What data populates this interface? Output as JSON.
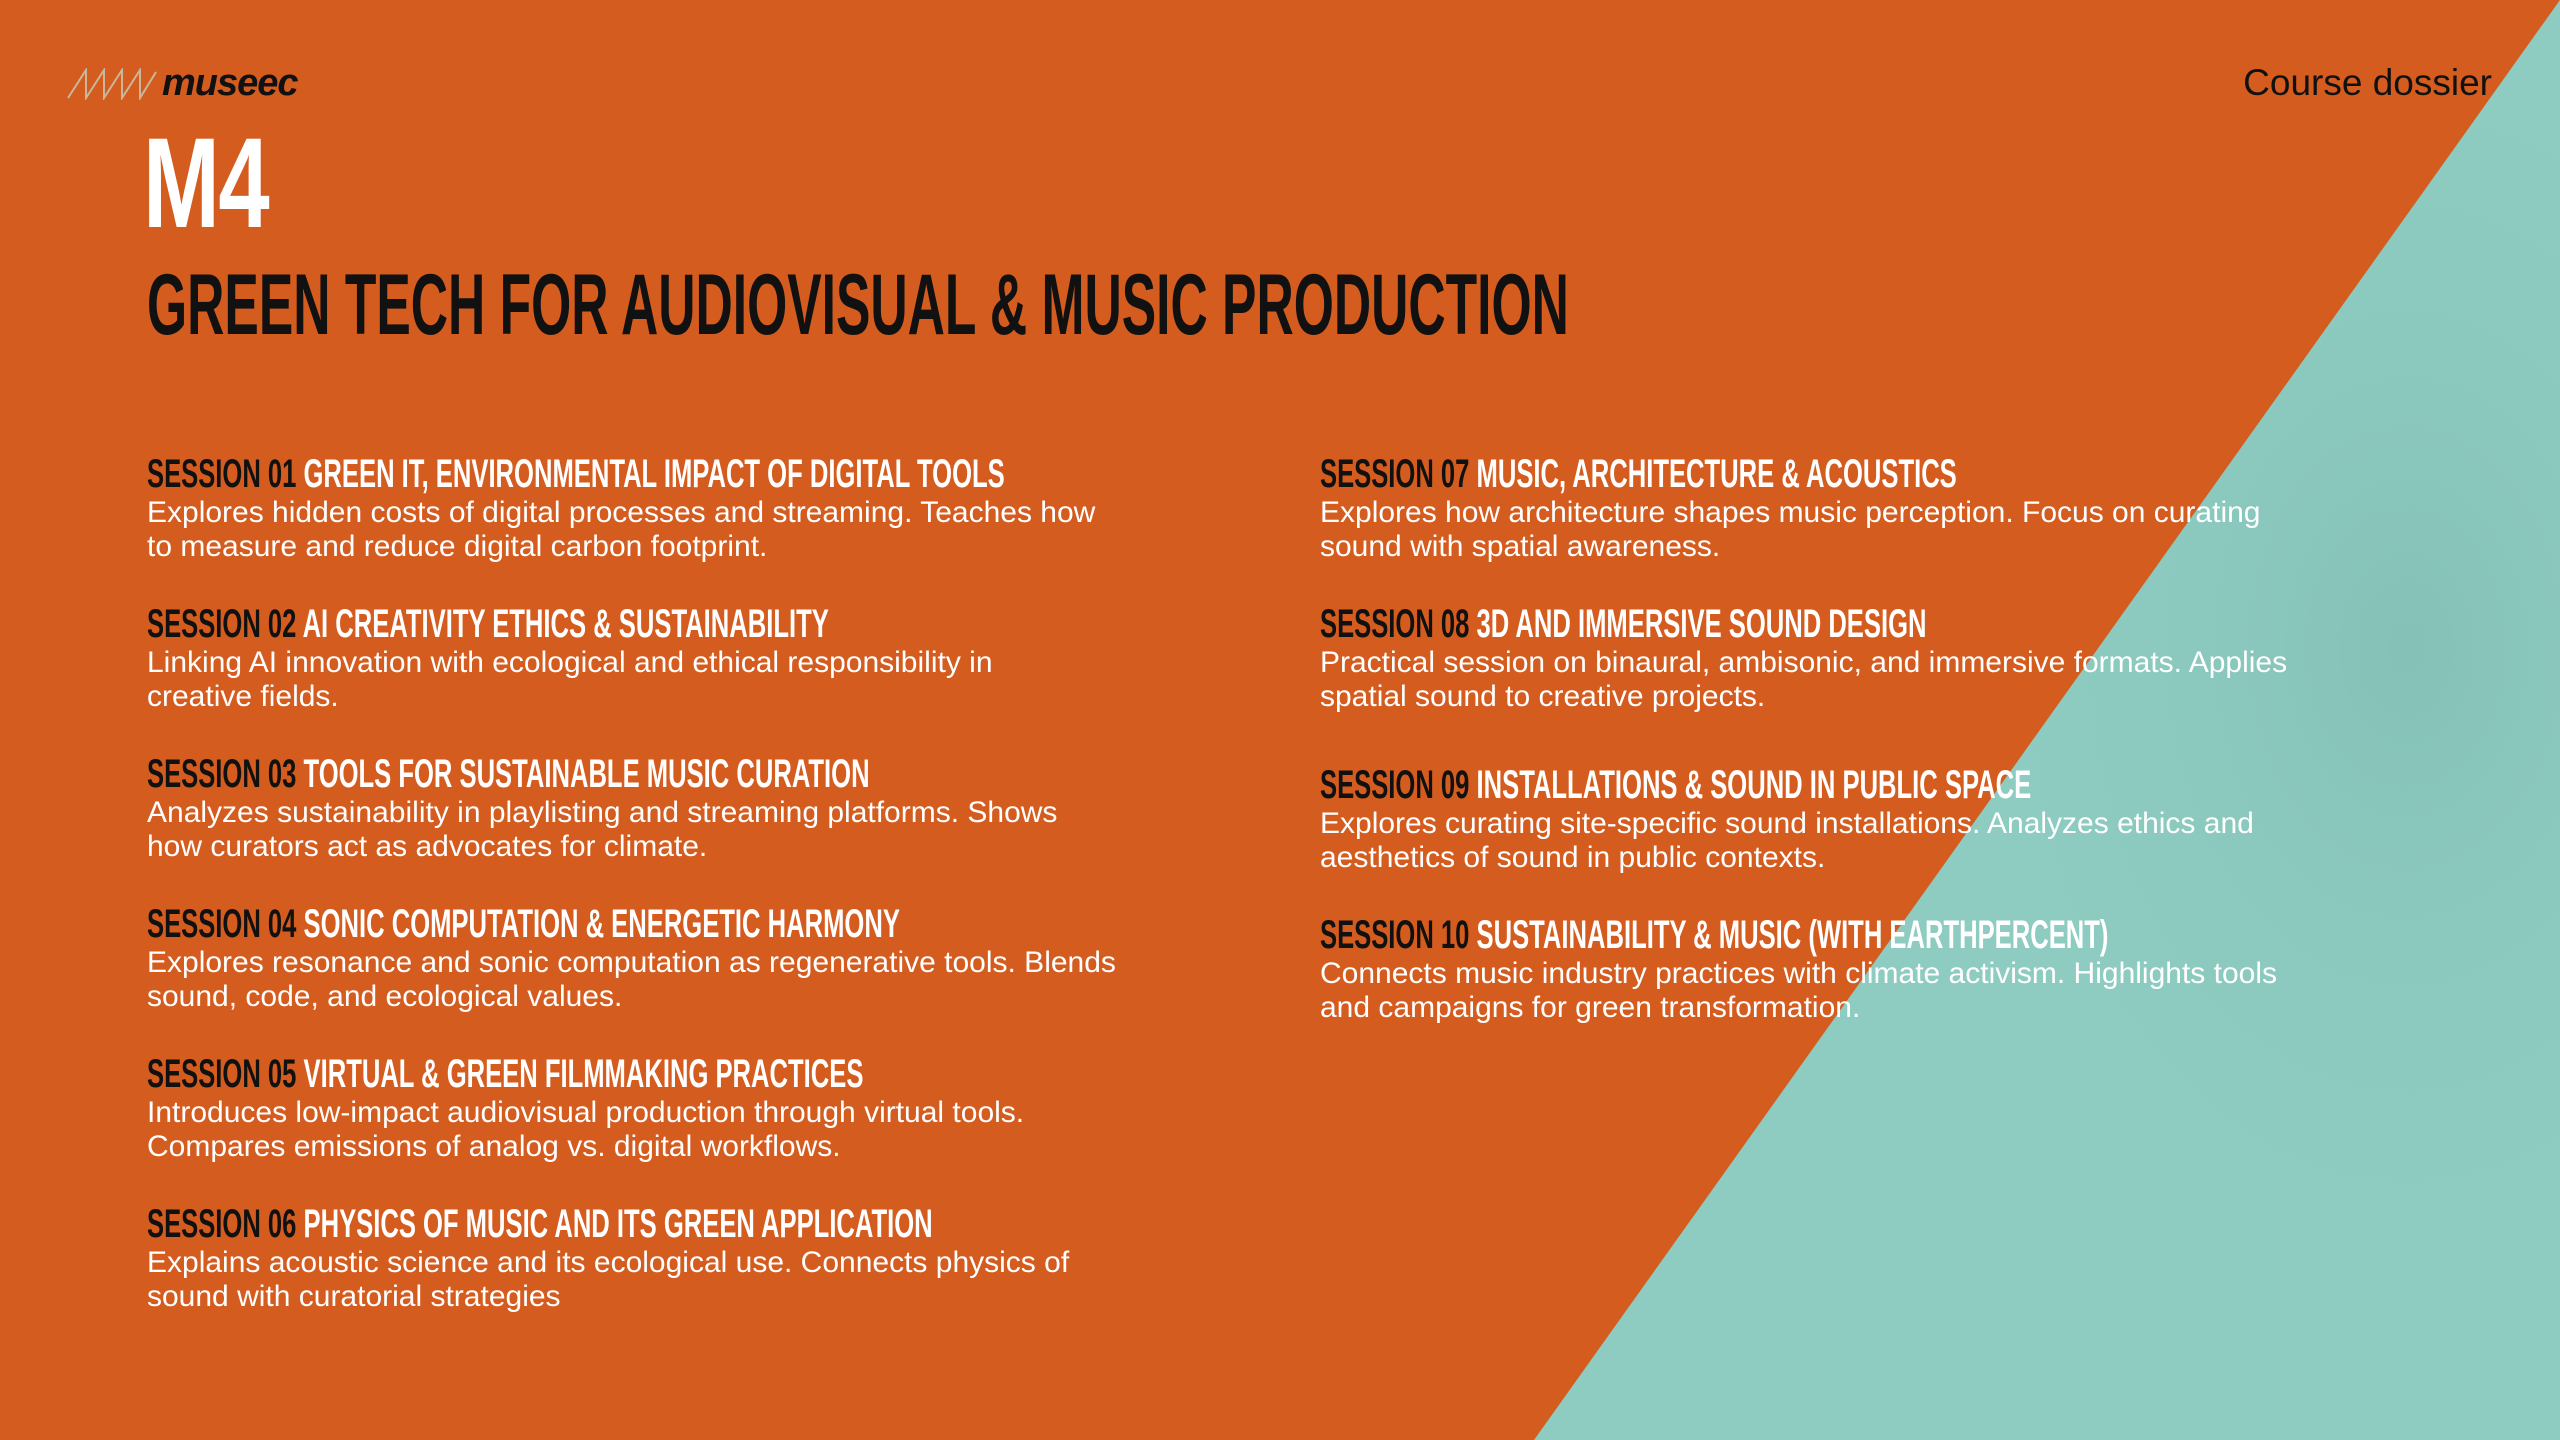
{
  "colors": {
    "background": "#D55C1F",
    "accent_panel": "#8ECCC2",
    "heading_dark": "#111111",
    "text_light": "#FFFFFF"
  },
  "header": {
    "logo_text": "museec",
    "logo_icon": "zigzag-wave-icon",
    "right_label": "Course dossier"
  },
  "module": {
    "code": "M4",
    "title": "GREEN TECH FOR AUDIOVISUAL & MUSIC PRODUCTION"
  },
  "sessions": [
    {
      "number": "SESSION 01",
      "title": "GREEN IT, ENVIRONMENTAL IMPACT OF DIGITAL TOOLS",
      "lines": [
        "Explores hidden costs of digital processes and streaming. Teaches how",
        "to measure and reduce digital carbon footprint."
      ]
    },
    {
      "number": "SESSION 02",
      "title": "AI CREATIVITY ETHICS & SUSTAINABILITY",
      "lines": [
        "Linking AI innovation with ecological and ethical responsibility in",
        "creative fields."
      ]
    },
    {
      "number": "SESSION 03",
      "title": "TOOLS FOR SUSTAINABLE MUSIC CURATION",
      "lines": [
        "Analyzes sustainability in playlisting and streaming platforms. Shows",
        "how curators act as advocates for climate."
      ]
    },
    {
      "number": "SESSION 04",
      "title": "SONIC COMPUTATION & ENERGETIC HARMONY",
      "lines": [
        "Explores resonance and sonic computation as regenerative tools. Blends",
        "sound, code, and ecological values."
      ]
    },
    {
      "number": "SESSION 05",
      "title": "VIRTUAL & GREEN FILMMAKING PRACTICES",
      "lines": [
        "Introduces low-impact audiovisual production through virtual tools.",
        "Compares emissions of analog vs. digital workflows."
      ]
    },
    {
      "number": "SESSION 06",
      "title": "PHYSICS OF MUSIC AND ITS GREEN APPLICATION",
      "lines": [
        "Explains acoustic science and its ecological use. Connects physics of",
        "sound with curatorial strategies"
      ]
    },
    {
      "number": "SESSION 07",
      "title": "MUSIC, ARCHITECTURE & ACOUSTICS",
      "lines": [
        "Explores how architecture shapes music perception. Focus on curating",
        "sound with spatial awareness."
      ]
    },
    {
      "number": "SESSION 08",
      "title": "3D AND IMMERSIVE SOUND DESIGN",
      "lines": [
        "Practical session on binaural, ambisonic, and immersive formats. Applies",
        "spatial sound to creative projects."
      ]
    },
    {
      "number": "SESSION 09",
      "title": "INSTALLATIONS & SOUND IN PUBLIC SPACE",
      "lines": [
        "Explores curating site-specific sound installations. Analyzes ethics and",
        "aesthetics of sound in public contexts."
      ]
    },
    {
      "number": "SESSION 10",
      "title": "SUSTAINABILITY & MUSIC (WITH EARTHPERCENT)",
      "lines": [
        "Connects music industry practices with climate activism. Highlights tools",
        "and campaigns for green transformation."
      ]
    }
  ]
}
